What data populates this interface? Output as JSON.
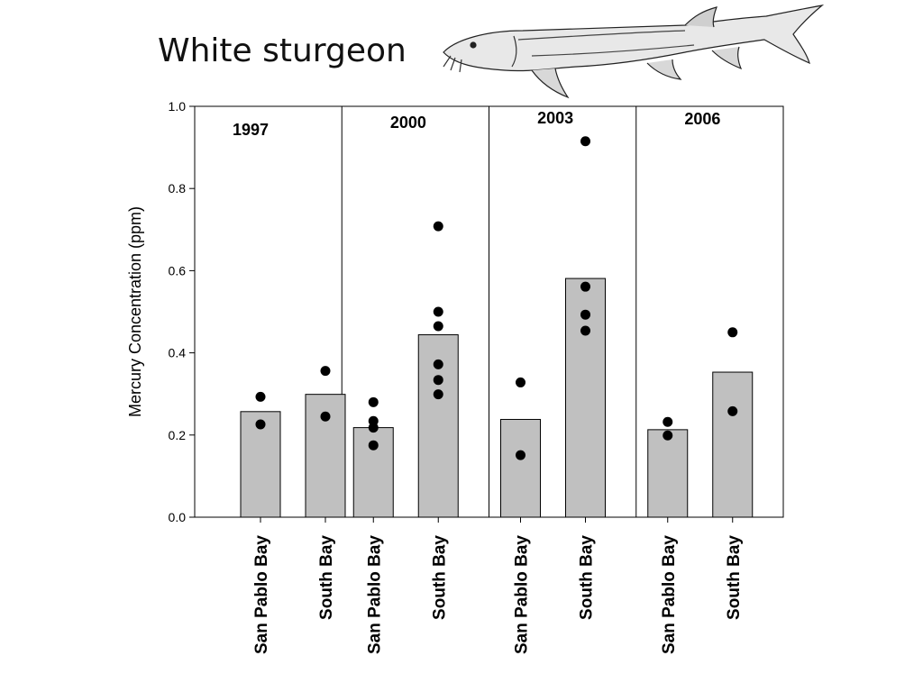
{
  "title": "White sturgeon",
  "fish_illustration": "white-sturgeon-drawing",
  "chart_data": {
    "type": "bar",
    "ylabel": "Mercury Concentration (ppm)",
    "xlabel": "",
    "ylim": [
      0,
      1.0
    ],
    "yticks": [
      "0.0",
      "0.2",
      "0.4",
      "0.6",
      "0.8",
      "1.0"
    ],
    "overlay": "individual sample points shown as black dots",
    "bar_color": "#c0c0c0",
    "groups": [
      {
        "year": "1997",
        "bars": [
          {
            "category": "San Pablo Bay",
            "value": 0.257,
            "points": [
              0.293,
              0.226
            ]
          },
          {
            "category": "South Bay",
            "value": 0.299,
            "points": [
              0.356,
              0.245
            ]
          }
        ]
      },
      {
        "year": "2000",
        "bars": [
          {
            "category": "San Pablo Bay",
            "value": 0.218,
            "points": [
              0.28,
              0.234,
              0.218,
              0.175
            ]
          },
          {
            "category": "South Bay",
            "value": 0.444,
            "points": [
              0.708,
              0.5,
              0.465,
              0.372,
              0.334,
              0.299
            ]
          }
        ]
      },
      {
        "year": "2003",
        "bars": [
          {
            "category": "San Pablo Bay",
            "value": 0.238,
            "points": [
              0.328,
              0.151
            ]
          },
          {
            "category": "South Bay",
            "value": 0.581,
            "points": [
              0.915,
              0.561,
              0.493,
              0.454
            ]
          }
        ]
      },
      {
        "year": "2006",
        "bars": [
          {
            "category": "San Pablo Bay",
            "value": 0.213,
            "points": [
              0.232,
              0.199
            ]
          },
          {
            "category": "South Bay",
            "value": 0.353,
            "points": [
              0.45,
              0.258
            ]
          }
        ]
      }
    ]
  }
}
